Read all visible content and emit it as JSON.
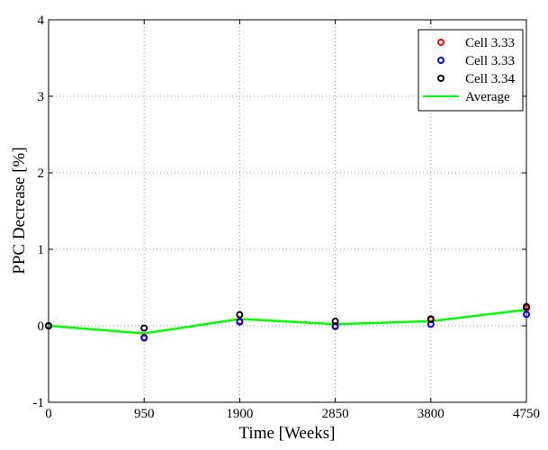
{
  "chart_data": {
    "type": "scatter",
    "title": "",
    "xlabel": "Time [Weeks]",
    "ylabel": "PPC Decrease [%]",
    "xlim": [
      0,
      4750
    ],
    "ylim": [
      -1,
      4
    ],
    "grid": true,
    "legend_position": "top-right",
    "x": [
      0,
      950,
      1900,
      2850,
      3800,
      4750
    ],
    "xticks": [
      "0",
      "950",
      "1900",
      "2850",
      "3800",
      "4750"
    ],
    "yticks": [
      "-1",
      "0",
      "1",
      "2",
      "3",
      "4"
    ],
    "ytick_values": [
      -1,
      0,
      1,
      2,
      3,
      4
    ],
    "series": [
      {
        "name": "Cell 3.33",
        "kind": "marker",
        "color": "#ff0000",
        "values": [
          0,
          -0.15,
          0.06,
          0.0,
          0.08,
          0.23
        ]
      },
      {
        "name": "Cell 3.33",
        "kind": "marker",
        "color": "#0000ff",
        "values": [
          0,
          -0.16,
          0.05,
          -0.01,
          0.02,
          0.15
        ]
      },
      {
        "name": "Cell 3.34",
        "kind": "marker",
        "color": "#000000",
        "values": [
          0,
          -0.03,
          0.145,
          0.06,
          0.09,
          0.25
        ]
      },
      {
        "name": "Average",
        "kind": "line",
        "color": "#00ff00",
        "values": [
          0,
          -0.1,
          0.09,
          0.02,
          0.06,
          0.21
        ]
      }
    ]
  }
}
